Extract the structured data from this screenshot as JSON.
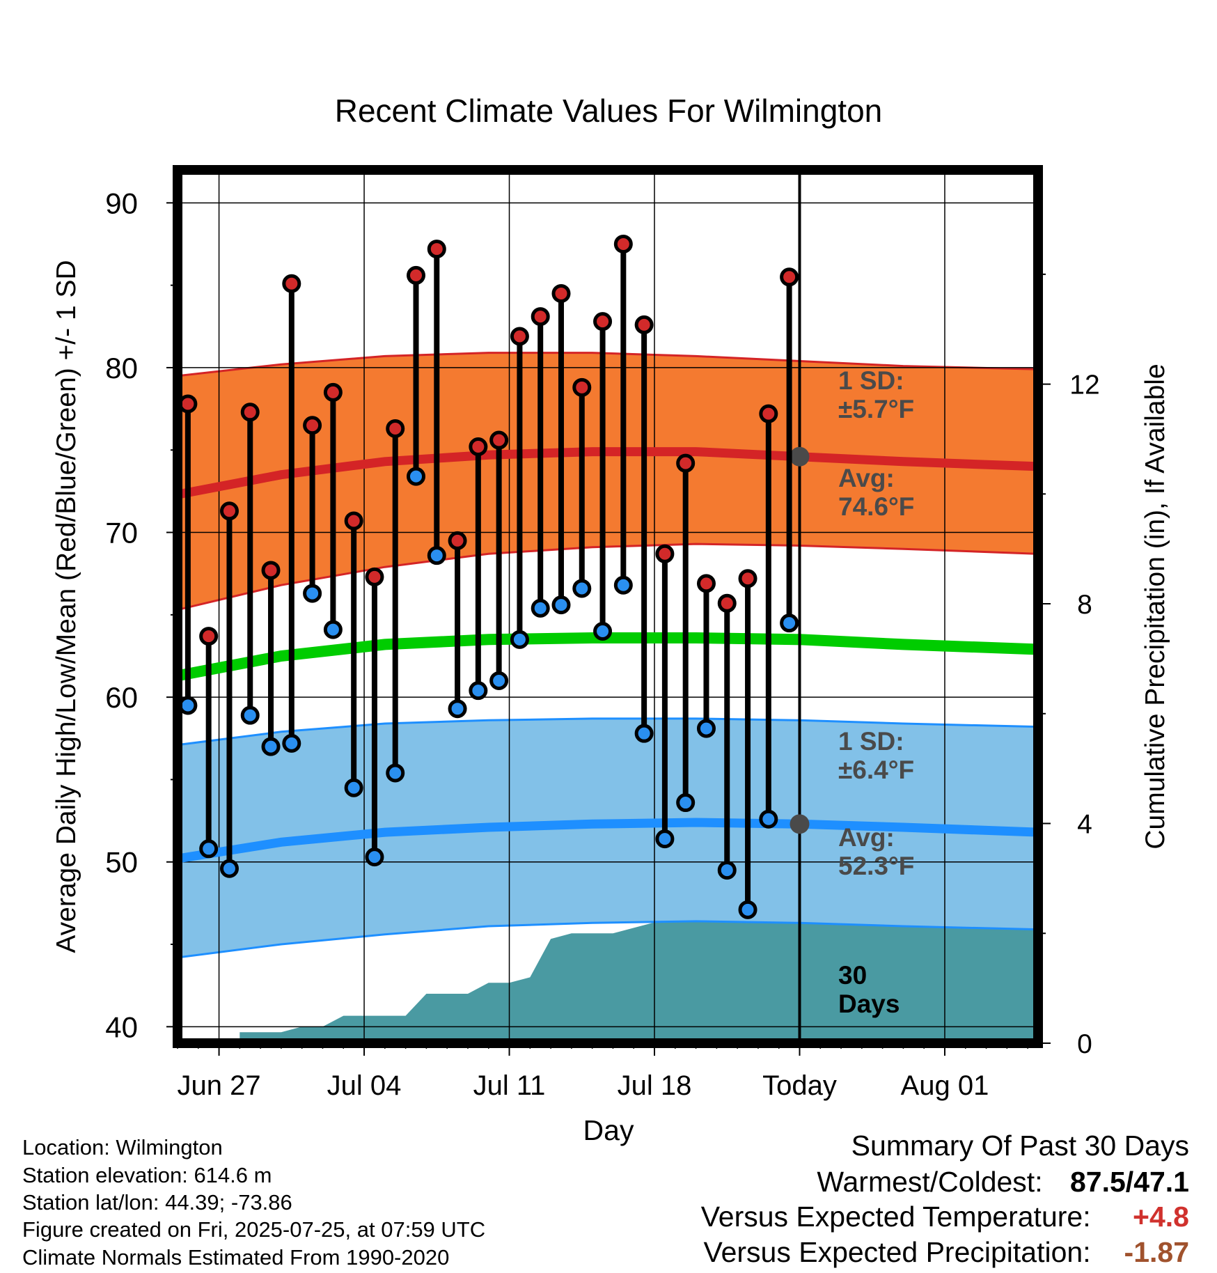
{
  "chart_data": {
    "type": "line",
    "title": "Recent Climate Values For Wilmington",
    "xlabel": "Day",
    "ylabel_left": "Average Daily High/Low/Mean (Red/Blue/Green) +/- 1 SD",
    "ylabel_right": "Cumulative Precipitation (in), If Available",
    "ylim_left": [
      39,
      92
    ],
    "ylim_right": [
      0,
      15.9
    ],
    "yticks_left": [
      "40",
      "50",
      "60",
      "70",
      "80",
      "90"
    ],
    "yticks_right": [
      "0",
      "4",
      "8",
      "12"
    ],
    "x_start_day": 0,
    "x_end_day": 41.5,
    "x_ticks": [
      {
        "label": "Jun 27",
        "day": 2
      },
      {
        "label": "Jul 04",
        "day": 9
      },
      {
        "label": "Jul 11",
        "day": 16
      },
      {
        "label": "Jul 18",
        "day": 23
      },
      {
        "label": "Today",
        "day": 30
      },
      {
        "label": "Aug 01",
        "day": 37
      }
    ],
    "today_day": 30,
    "grid": true,
    "highs": [
      77.8,
      63.7,
      71.3,
      77.3,
      67.7,
      85.1,
      76.5,
      78.5,
      70.7,
      67.3,
      76.3,
      85.6,
      87.2,
      69.5,
      75.2,
      75.6,
      81.9,
      83.1,
      84.5,
      78.8,
      82.8,
      87.5,
      82.6,
      68.7,
      74.2,
      66.9,
      65.7,
      67.2,
      77.2,
      85.5
    ],
    "lows": [
      59.5,
      50.8,
      49.6,
      58.9,
      57.0,
      57.2,
      66.3,
      64.1,
      54.5,
      50.3,
      55.4,
      73.4,
      68.6,
      59.3,
      60.4,
      61.0,
      63.5,
      65.4,
      65.6,
      66.6,
      64.0,
      66.8,
      57.8,
      51.4,
      53.6,
      58.1,
      49.5,
      47.1,
      52.6,
      64.5
    ],
    "normal_high": {
      "x": [
        0,
        5,
        10,
        15,
        20,
        25,
        30,
        35,
        41.5
      ],
      "values": [
        72.3,
        73.5,
        74.3,
        74.7,
        74.9,
        74.9,
        74.6,
        74.3,
        74.0
      ]
    },
    "normal_high_band": {
      "x": [
        0,
        5,
        10,
        15,
        20,
        25,
        30,
        35,
        41.5
      ],
      "upper": [
        79.5,
        80.2,
        80.7,
        80.9,
        80.9,
        80.7,
        80.4,
        80.1,
        79.9
      ],
      "lower": [
        65.3,
        66.8,
        67.9,
        68.7,
        69.1,
        69.3,
        69.2,
        69.0,
        68.7
      ]
    },
    "normal_mean": {
      "x": [
        0,
        5,
        10,
        15,
        20,
        25,
        30,
        35,
        41.5
      ],
      "values": [
        61.3,
        62.5,
        63.2,
        63.5,
        63.6,
        63.6,
        63.5,
        63.2,
        62.9
      ]
    },
    "normal_low": {
      "x": [
        0,
        5,
        10,
        15,
        20,
        25,
        30,
        35,
        41.5
      ],
      "values": [
        50.2,
        51.2,
        51.8,
        52.1,
        52.3,
        52.4,
        52.3,
        52.1,
        51.8
      ]
    },
    "normal_low_band": {
      "x": [
        0,
        5,
        10,
        15,
        20,
        25,
        30,
        35,
        41.5
      ],
      "upper": [
        57.1,
        57.9,
        58.4,
        58.6,
        58.7,
        58.7,
        58.6,
        58.4,
        58.2
      ],
      "lower": [
        44.2,
        45.0,
        45.6,
        46.1,
        46.3,
        46.4,
        46.3,
        46.1,
        45.9
      ]
    },
    "precip_cumulative": {
      "x": [
        3,
        4,
        5,
        6,
        7,
        8,
        9,
        10,
        11,
        12,
        13,
        14,
        15,
        16,
        17,
        18,
        19,
        20,
        21,
        22,
        23,
        24,
        25,
        26,
        27,
        28,
        29,
        30,
        31,
        32,
        33,
        34,
        35,
        36,
        37,
        38,
        39,
        40,
        41.5
      ],
      "values": [
        0.2,
        0.2,
        0.2,
        0.3,
        0.3,
        0.5,
        0.5,
        0.5,
        0.5,
        0.9,
        0.9,
        0.9,
        1.1,
        1.1,
        1.2,
        1.9,
        2.0,
        2.0,
        2.0,
        2.1,
        2.2,
        2.2,
        2.7,
        2.7,
        2.7,
        2.7,
        2.7,
        2.7,
        2.7,
        2.7,
        2.7,
        2.7,
        2.7,
        2.7,
        2.7,
        2.7,
        2.7,
        2.7,
        2.7
      ]
    },
    "annotations": {
      "high_sd_line1": "1 SD:",
      "high_sd_line2": "±5.7°F",
      "high_avg_line1": "Avg:",
      "high_avg_line2": "74.6°F",
      "low_sd_line1": "1 SD:",
      "low_sd_line2": "±6.4°F",
      "low_avg_line1": "Avg:",
      "low_avg_line2": "52.3°F",
      "days_line1": "30",
      "days_line2": "Days"
    },
    "colors": {
      "high_band": "#f47a30",
      "high_line": "#d42426",
      "low_band": "#82c1e8",
      "low_line": "#1e8fff",
      "mean_line": "#00cc00",
      "precip": "#4a9aa2",
      "high_marker": "#d22a2a",
      "low_marker": "#2a8ff0",
      "annotation": "#4a4a4a"
    }
  },
  "info": {
    "location": "Location: Wilmington",
    "elevation": "Station elevation: 614.6 m",
    "latlon": "Station lat/lon: 44.39; -73.86",
    "created": "Figure created on Fri, 2025-07-25, at 07:59 UTC",
    "normals": "Climate Normals Estimated From 1990-2020"
  },
  "summary": {
    "title": "Summary Of Past 30 Days",
    "warmest_label": "Warmest/Coldest:",
    "warmest_value": "87.5/47.1",
    "temp_label": "Versus Expected Temperature:",
    "temp_value": "+4.8",
    "precip_label": "Versus Expected Precipitation:",
    "precip_value": "-1.87",
    "temp_color": "#d0312d",
    "precip_color": "#a0522d"
  }
}
